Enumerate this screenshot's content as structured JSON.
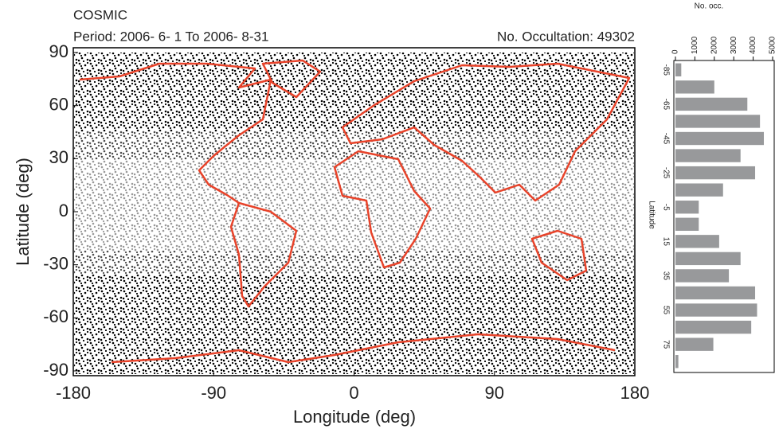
{
  "chart_data": [
    {
      "type": "map-scatter",
      "title": "COSMIC",
      "subtitle": "Period: 2006- 6- 1 To 2006- 8-31",
      "annotation": "No. Occultation: 49302",
      "xlabel": "Longitude (deg)",
      "ylabel": "Latitude (deg)",
      "xlim": [
        -180,
        180
      ],
      "ylim": [
        -90,
        90
      ],
      "xticks": [
        -180,
        -90,
        0,
        90,
        180
      ],
      "yticks": [
        90,
        60,
        30,
        0,
        -30,
        -60,
        -90
      ],
      "color": "#000000",
      "coast_color": "#e8432a"
    },
    {
      "type": "hbar",
      "xlabel": "No. occ.",
      "ylabel": "Latitude",
      "categories": [
        "-85",
        null,
        "-65",
        null,
        "-45",
        null,
        "-25",
        null,
        "-5",
        null,
        "15",
        null,
        "35",
        null,
        "55",
        null,
        "75",
        null
      ],
      "values": [
        300,
        2000,
        3700,
        4350,
        4550,
        3350,
        4100,
        2450,
        1200,
        1200,
        2250,
        3350,
        2750,
        4100,
        4200,
        3900,
        1950,
        150
      ],
      "xlim": [
        0,
        5000
      ],
      "xticks": [
        0,
        1000,
        2000,
        3000,
        4000,
        5000
      ],
      "color": "#98999b"
    }
  ]
}
